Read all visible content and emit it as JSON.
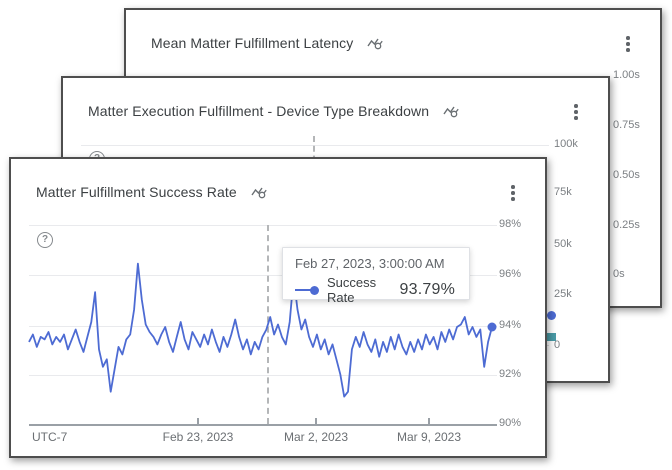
{
  "colors": {
    "line_blue": "#4d6bd3",
    "teal": "#4a9ba6",
    "grid": "#e9eaed",
    "axis": "#9aa0a6",
    "card_border": "#4e4e4e"
  },
  "icons": {
    "help_glyph": "?",
    "help": "question-mark-circle",
    "menu": "kebab-vertical-menu",
    "insights": "line-chart-magnifier"
  },
  "cards": [
    {
      "title": "Mean Matter Fulfillment Latency",
      "y_ticks": [
        "1.00s",
        "0.75s",
        "0.50s",
        "0.25s",
        "0s"
      ]
    },
    {
      "title": "Matter Execution Fulfillment - Device Type Breakdown",
      "y_ticks": [
        "100k",
        "75k",
        "50k",
        "25k",
        "0"
      ]
    },
    {
      "title": "Matter Fulfillment Success Rate"
    }
  ],
  "chart_data": [
    {
      "type": "line",
      "title": "Matter Fulfillment Success Rate",
      "timezone_label": "UTC-7",
      "x_ticks": [
        "Feb 23, 2023",
        "Mar 2, 2023",
        "Mar 9, 2023"
      ],
      "y_ticks": [
        "98%",
        "96%",
        "94%",
        "92%",
        "90%"
      ],
      "ylim": [
        90,
        98
      ],
      "grid": true,
      "crosshair": {
        "style": "dashed-vertical",
        "at": "Feb 27, 2023, 3:00:00 AM"
      },
      "tooltip": {
        "timestamp": "Feb 27, 2023, 3:00:00 AM",
        "series": "Success Rate",
        "value": "93.79%"
      },
      "series": [
        {
          "name": "Success Rate",
          "color": "#4d6bd3",
          "unit": "%",
          "values": [
            93.3,
            93.6,
            93.1,
            93.5,
            93.4,
            93.7,
            93.2,
            93.5,
            93.3,
            93.6,
            93.0,
            93.4,
            93.8,
            93.3,
            92.9,
            93.5,
            94.1,
            95.3,
            93.0,
            92.3,
            92.6,
            91.3,
            92.2,
            93.1,
            92.8,
            93.4,
            93.6,
            94.6,
            96.45,
            95.0,
            94.0,
            93.7,
            93.5,
            93.2,
            93.6,
            93.9,
            93.3,
            92.9,
            93.5,
            94.1,
            93.4,
            93.0,
            93.7,
            93.4,
            93.1,
            93.6,
            93.2,
            93.8,
            93.3,
            92.9,
            93.5,
            93.1,
            93.6,
            94.2,
            93.5,
            93.0,
            93.4,
            92.8,
            93.3,
            93.0,
            93.5,
            93.79,
            94.3,
            93.6,
            94.0,
            93.5,
            93.2,
            94.1,
            95.9,
            94.6,
            93.8,
            94.2,
            93.5,
            93.1,
            93.6,
            93.0,
            93.4,
            92.8,
            93.2,
            92.6,
            92.0,
            91.1,
            91.3,
            93.0,
            93.5,
            93.1,
            93.7,
            93.2,
            92.9,
            93.4,
            92.7,
            93.3,
            92.9,
            93.5,
            93.0,
            93.6,
            93.1,
            92.8,
            93.3,
            92.9,
            93.4,
            93.0,
            93.6,
            93.2,
            93.5,
            93.0,
            93.7,
            93.3,
            93.8,
            93.4,
            93.9,
            94.0,
            94.3,
            93.6,
            93.9,
            93.5,
            93.8,
            92.3,
            93.3,
            93.9
          ]
        }
      ]
    },
    {
      "type": "line",
      "title": "Matter Execution Fulfillment - Device Type Breakdown",
      "y_ticks": [
        "100k",
        "75k",
        "50k",
        "25k",
        "0"
      ],
      "ylim": [
        0,
        100000
      ],
      "occluded": true,
      "visible_end_markers": [
        {
          "shape": "circle",
          "color": "#4d6bd3",
          "approx_value": 15000
        },
        {
          "shape": "square",
          "color": "#4a9ba6",
          "approx_value": 4500
        }
      ]
    },
    {
      "type": "line",
      "title": "Mean Matter Fulfillment Latency",
      "y_ticks": [
        "1.00s",
        "0.75s",
        "0.50s",
        "0.25s",
        "0s"
      ],
      "ylim": [
        0,
        1
      ],
      "occluded": true
    }
  ]
}
